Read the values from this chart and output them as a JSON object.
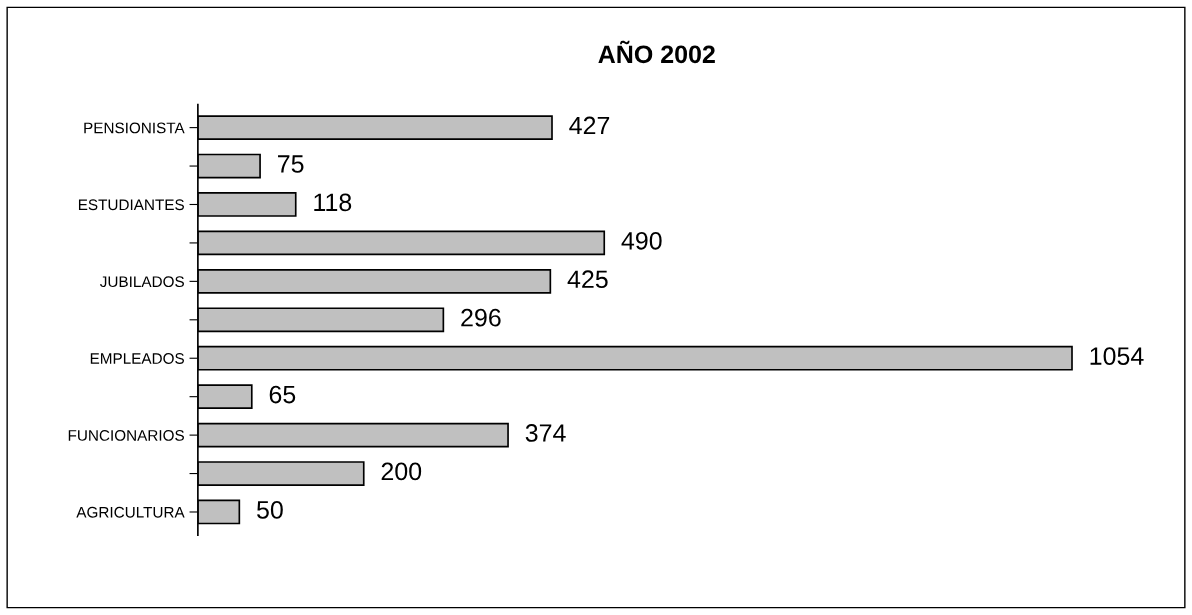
{
  "chart_data": {
    "type": "bar",
    "title": "AÑO 2002",
    "orientation": "horizontal",
    "categories": [
      "PENSIONISTA",
      null,
      "ESTUDIANTES",
      null,
      "JUBILADOS",
      null,
      "EMPLEADOS",
      null,
      "FUNCIONARIOS",
      null,
      "AGRICULTURA"
    ],
    "values": [
      427,
      75,
      118,
      490,
      425,
      296,
      1054,
      65,
      374,
      200,
      50
    ],
    "color": "#c0c0c0",
    "data_labels": true,
    "grid": false,
    "legend": false
  }
}
